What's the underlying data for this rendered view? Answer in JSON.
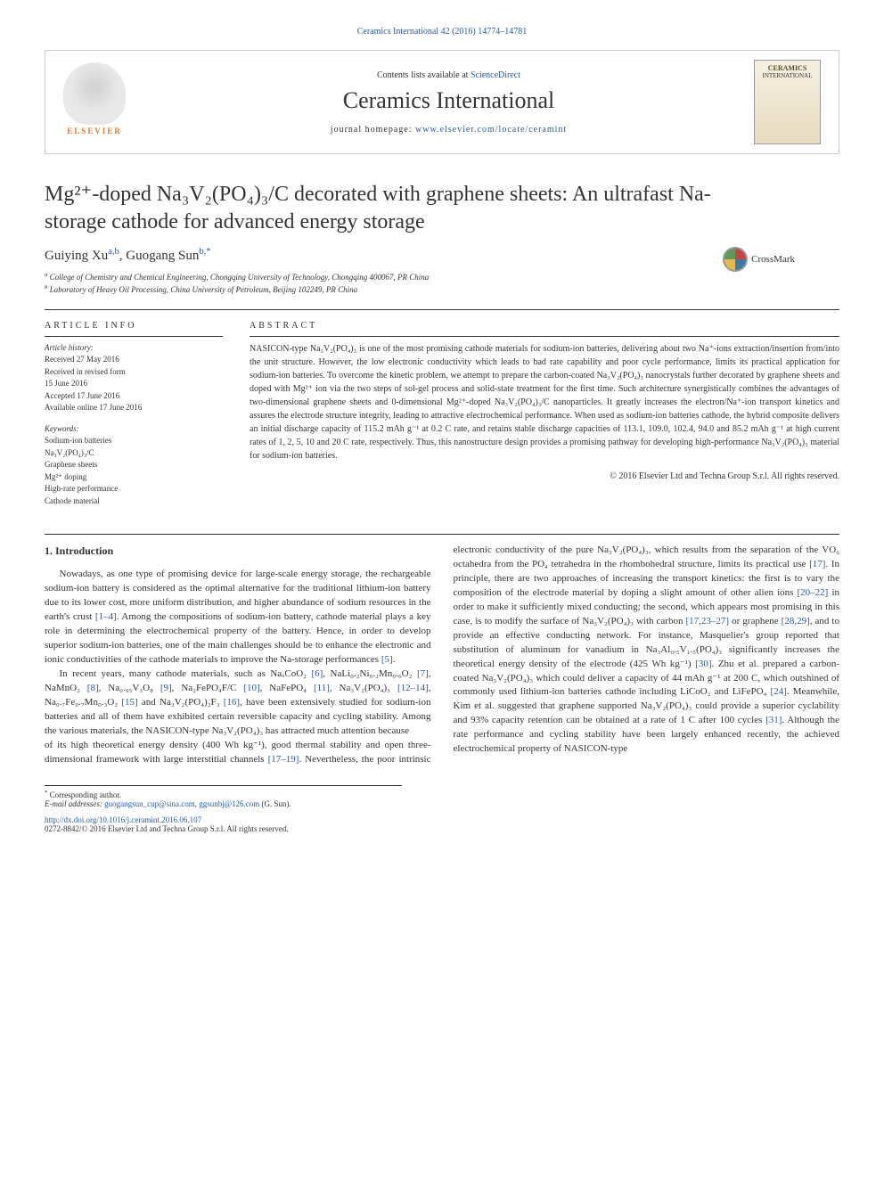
{
  "top_link": {
    "journal": "Ceramics International",
    "pages": "42 (2016) 14774–14781"
  },
  "header": {
    "contents_prefix": "Contents lists available at ",
    "sciencedirect": "ScienceDirect",
    "journal_name": "Ceramics International",
    "homepage_prefix": "journal homepage: ",
    "homepage_url": "www.elsevier.com/locate/ceramint",
    "elsevier": "ELSEVIER",
    "cover_title": "CERAMICS",
    "cover_sub": "INTERNATIONAL"
  },
  "crossmark": "CrossMark",
  "title": "Mg²⁺-doped Na₃V₂(PO₄)₃/C decorated with graphene sheets: An ultrafast Na-storage cathode for advanced energy storage",
  "authors": {
    "a1": "Guiying Xu",
    "a1_sup": "a,b",
    "a2": "Guogang Sun",
    "a2_sup": "b,",
    "corr": "*"
  },
  "affiliations": {
    "a": "College of Chemistry and Chemical Engineering, Chongqing University of Technology, Chongqing 400067, PR China",
    "b": "Laboratory of Heavy Oil Processing, China University of Petroleum, Beijing 102249, PR China"
  },
  "article_info": {
    "heading": "article info",
    "history_label": "Article history:",
    "received": "Received 27 May 2016",
    "revised1": "Received in revised form",
    "revised2": "15 June 2016",
    "accepted": "Accepted 17 June 2016",
    "online": "Available online 17 June 2016",
    "keywords_label": "Keywords:",
    "kw1": "Sodium-ion batteries",
    "kw2": "Na₃V₂(PO₄)₃/C",
    "kw3": "Graphene sheets",
    "kw4": "Mg²⁺ doping",
    "kw5": "High-rate performance",
    "kw6": "Cathode material"
  },
  "abstract": {
    "heading": "abstract",
    "text": "NASICON-type Na₃V₂(PO₄)₃ is one of the most promising cathode materials for sodium-ion batteries, delivering about two Na⁺-ions extraction/insertion from/into the unit structure. However, the low electronic conductivity which leads to bad rate capability and poor cycle performance, limits its practical application for sodium-ion batteries. To overcome the kinetic problem, we attempt to prepare the carbon-coated Na₃V₂(PO₄)₃ nanocrystals further decorated by graphene sheets and doped with Mg²⁺ ion via the two steps of sol-gel process and solid-state treatment for the first time. Such architecture synergistically combines the advantages of two-dimensional graphene sheets and 0-dimensional Mg²⁺-doped Na₃V₂(PO₄)₃/C nanoparticles. It greatly increases the electron/Na⁺-ion transport kinetics and assures the electrode structure integrity, leading to attractive electrochemical performance. When used as sodium-ion batteries cathode, the hybrid composite delivers an initial discharge capacity of 115.2 mAh g⁻¹ at 0.2 C rate, and retains stable discharge capacities of 113.1, 109.0, 102.4, 94.0 and 85.2 mAh g⁻¹ at high current rates of 1, 2, 5, 10 and 20 C rate, respectively. Thus, this nanostructure design provides a promising pathway for developing high-performance Na₃V₂(PO₄)₃ material for sodium-ion batteries.",
    "copyright": "© 2016 Elsevier Ltd and Techna Group S.r.l. All rights reserved."
  },
  "intro": {
    "heading": "1. Introduction",
    "p1a": "Nowadays, as one type of promising device for large-scale energy storage, the rechargeable sodium-ion battery is considered as the optimal alternative for the traditional lithium-ion battery due to its lower cost, more uniform distribution, and higher abundance of sodium resources in the earth's crust ",
    "p1_ref1": "[1–4]",
    "p1b": ". Among the compositions of sodium-ion battery, cathode material plays a key role in determining the electrochemical property of the battery. Hence, in order to develop superior sodium-ion batteries, one of the main challenges should be to enhance the electronic and ionic conductivities of the cathode materials to improve the Na-storage performances ",
    "p1_ref2": "[5]",
    "p1c": ".",
    "p2a": "In recent years, many cathode materials, such as NaₓCoO₂ ",
    "r6": "[6]",
    "p2b": ", NaLi₀.₂Ni₀.₂Mn₀.₆O₂ ",
    "r7": "[7]",
    "p2c": ", NaMnO₂ ",
    "r8": "[8]",
    "p2d": ", Na₀.₉₅V₃O₈ ",
    "r9": "[9]",
    "p2e": ", Na₂FePO₄F/C ",
    "r10": "[10]",
    "p2f": ", NaFePO₄ ",
    "r11": "[11]",
    "p2g": ", Na₃V₂(PO₄)₃ ",
    "r12": "[12–14]",
    "p2h": ", Na₀.₇Fe₀.₇Mn₀.₃O₂ ",
    "r15": "[15]",
    "p2i": " and Na₃V₂(PO₄)₂F₃ ",
    "r16": "[16]",
    "p2j": ", have been extensively studied for sodium-ion batteries and all of them have exhibited certain reversible capacity and cycling stability. Among the various materials, the NASICON-type Na₃V₂(PO₄)₃ has attracted much attention because",
    "p3a": "of its high theoretical energy density (400 Wh kg⁻¹), good thermal stability and open three-dimensional framework with large interstitial channels ",
    "r17": "[17–19]",
    "p3b": ". Nevertheless, the poor intrinsic electronic conductivity of the pure Na₃V₂(PO₄)₃, which results from the separation of the VO₆ octahedra from the PO₄ tetrahedra in the rhombohedral structure, limits its practical use ",
    "r17b": "[17]",
    "p3c": ". In principle, there are two approaches of increasing the transport kinetics: the first is to vary the composition of the electrode material by doping a slight amount of other alien ions ",
    "r20": "[20–22]",
    "p3d": " in order to make it sufficiently mixed conducting; the second, which appears most promising in this case, is to modify the surface of Na₃V₂(PO₄)₃ with carbon ",
    "r23": "[17,23–27]",
    "p3e": " or graphene ",
    "r28": "[28,29]",
    "p3f": ", and to provide an effective conducting network. For instance, Masquelier's group reported that substitution of aluminum for vanadium in Na₃Al₀.₅V₁.₅(PO₄)₃ significantly increases the theoretical energy density of the electrode (425 Wh kg⁻¹) ",
    "r30": "[30]",
    "p3g": ". Zhu et al. prepared a carbon-coated Na₃V₂(PO₄)₃ which could deliver a capacity of 44 mAh g⁻¹ at 200 C, which outshined of commonly used lithium-ion batteries cathode including LiCoO₂ and LiFePO₄ ",
    "r24": "[24]",
    "p3h": ". Meanwhile, Kim et al. suggested that graphene supported Na₃V₂(PO₄)₃ could provide a superior cyclability and 93% capacity retention can be obtained at a rate of 1 C after 100 cycles ",
    "r31": "[31]",
    "p3i": ". Although the rate performance and cycling stability have been largely enhanced recently, the achieved electrochemical property of NASICON-type"
  },
  "footnotes": {
    "corr_label": "Corresponding author.",
    "email_label": "E-mail addresses: ",
    "email1": "guogangsun_cup@sina.com",
    "email_sep": ", ",
    "email2": "ggsunbj@126.com",
    "email_name": " (G. Sun)."
  },
  "doi": {
    "url": "http://dx.doi.org/10.1016/j.ceramint.2016.06.107",
    "issn": "0272-8842/© 2016 Elsevier Ltd and Techna Group S.r.l. All rights reserved."
  }
}
